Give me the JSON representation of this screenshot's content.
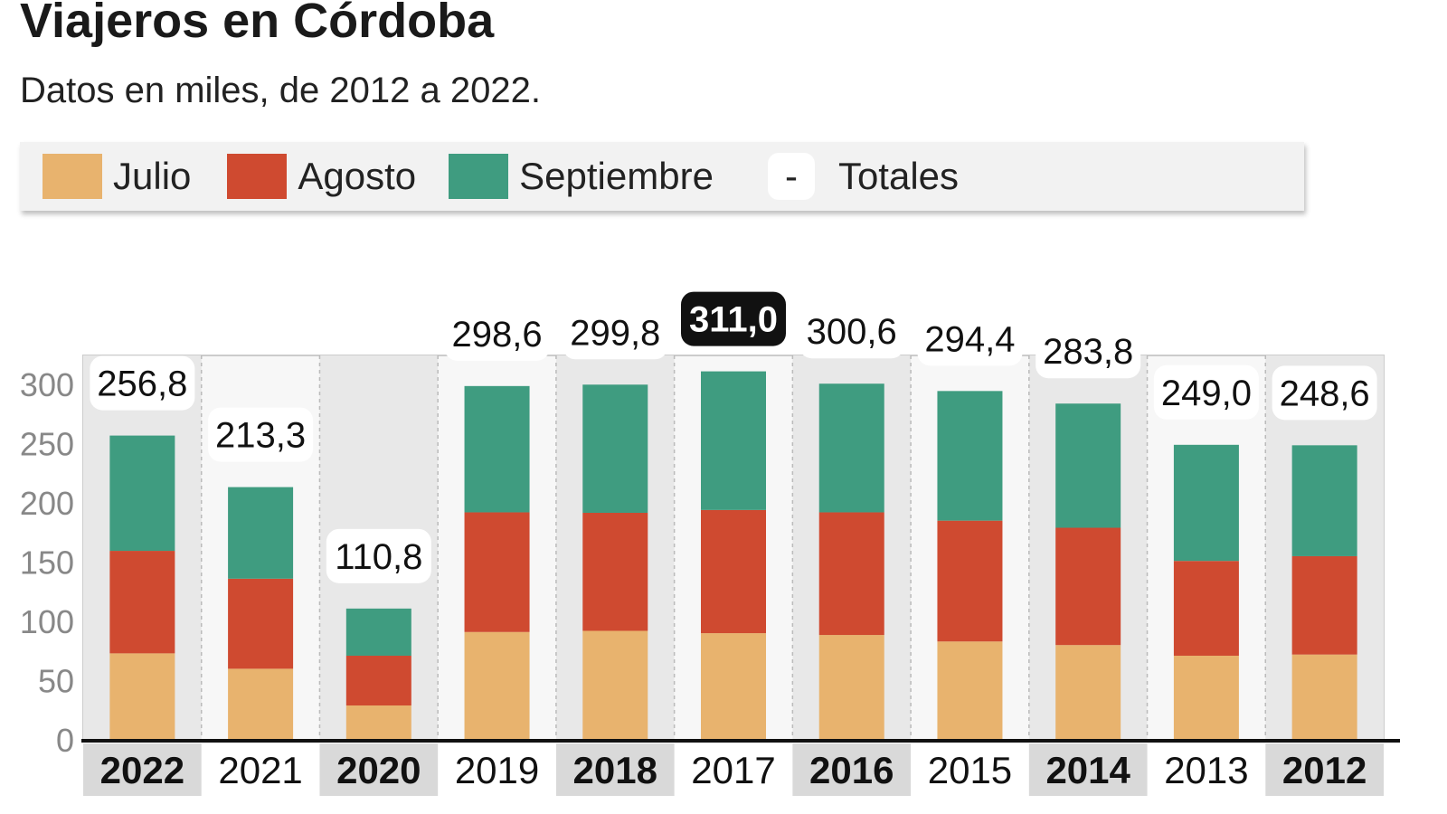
{
  "chart_data": {
    "type": "bar",
    "stacked": true,
    "title": "Viajeros en Córdoba",
    "subtitle": "Datos en miles, de 2012 a 2022.",
    "categories": [
      "2022",
      "2021",
      "2020",
      "2019",
      "2018",
      "2017",
      "2016",
      "2015",
      "2014",
      "2013",
      "2012"
    ],
    "highlighted_categories": [
      "2022",
      "2020",
      "2018",
      "2016",
      "2014",
      "2012"
    ],
    "series": [
      {
        "name": "Julio",
        "color": "#e8b36e",
        "values": [
          73,
          60,
          29,
          91,
          92,
          90,
          88.5,
          83,
          80,
          71,
          72
        ]
      },
      {
        "name": "Agosto",
        "color": "#cf4a30",
        "values": [
          86.5,
          76,
          42,
          101,
          99.6,
          104,
          103.5,
          102,
          99,
          80,
          83
        ]
      },
      {
        "name": "Septiembre",
        "color": "#3f9c80",
        "values": [
          97.3,
          77.3,
          39.8,
          106.6,
          108.2,
          117,
          108.6,
          109.4,
          104.8,
          98,
          93.6
        ]
      }
    ],
    "totals": {
      "name": "Totales",
      "symbol": "-",
      "labels": [
        "256,8",
        "213,3",
        "110,8",
        "298,6",
        "299,8",
        "311,0",
        "300,6",
        "294,4",
        "283,8",
        "249,0",
        "248,6"
      ],
      "max_highlight": "311,0"
    },
    "yticks": [
      0,
      50,
      100,
      150,
      200,
      250,
      300
    ],
    "ylim": [
      0,
      300
    ],
    "legend_position": "top",
    "grid": false
  }
}
